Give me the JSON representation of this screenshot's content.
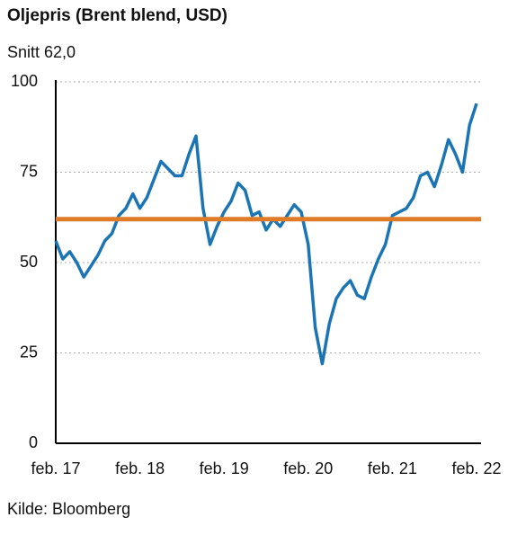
{
  "chart_data": {
    "type": "line",
    "title": "Oljepris (Brent blend, USD)",
    "subtitle": "Snitt 62,0",
    "source": "Kilde: Bloomberg",
    "x": [
      "2017-02",
      "2017-03",
      "2017-04",
      "2017-05",
      "2017-06",
      "2017-07",
      "2017-08",
      "2017-09",
      "2017-10",
      "2017-11",
      "2017-12",
      "2018-01",
      "2018-02",
      "2018-03",
      "2018-04",
      "2018-05",
      "2018-06",
      "2018-07",
      "2018-08",
      "2018-09",
      "2018-10",
      "2018-11",
      "2018-12",
      "2019-01",
      "2019-02",
      "2019-03",
      "2019-04",
      "2019-05",
      "2019-06",
      "2019-07",
      "2019-08",
      "2019-09",
      "2019-10",
      "2019-11",
      "2019-12",
      "2020-01",
      "2020-02",
      "2020-03",
      "2020-04",
      "2020-05",
      "2020-06",
      "2020-07",
      "2020-08",
      "2020-09",
      "2020-10",
      "2020-11",
      "2020-12",
      "2021-01",
      "2021-02",
      "2021-03",
      "2021-04",
      "2021-05",
      "2021-06",
      "2021-07",
      "2021-08",
      "2021-09",
      "2021-10",
      "2021-11",
      "2021-12",
      "2022-01",
      "2022-02"
    ],
    "values": [
      56,
      51,
      53,
      50,
      46,
      49,
      52,
      56,
      58,
      63,
      65,
      69,
      65,
      68,
      73,
      78,
      76,
      74,
      74,
      80,
      85,
      65,
      55,
      60,
      64,
      67,
      72,
      70,
      63,
      64,
      59,
      62,
      60,
      63,
      66,
      64,
      55,
      32,
      22,
      33,
      40,
      43,
      45,
      41,
      40,
      46,
      51,
      55,
      63,
      64,
      65,
      68,
      74,
      75,
      71,
      77,
      84,
      80,
      75,
      88,
      94
    ],
    "color": "#1b75b5",
    "average": 62.0,
    "average_color": "#e07b27",
    "xlim": [
      "2017-02",
      "2022-02"
    ],
    "xticks": [
      {
        "value": "2017-02",
        "label": "feb. 17"
      },
      {
        "value": "2018-02",
        "label": "feb. 18"
      },
      {
        "value": "2019-02",
        "label": "feb. 19"
      },
      {
        "value": "2020-02",
        "label": "feb. 20"
      },
      {
        "value": "2021-02",
        "label": "feb. 21"
      },
      {
        "value": "2022-02",
        "label": "feb. 22"
      }
    ],
    "ylim": [
      0,
      100
    ],
    "yticks": [
      0,
      25,
      50,
      75,
      100
    ],
    "grid": true
  }
}
